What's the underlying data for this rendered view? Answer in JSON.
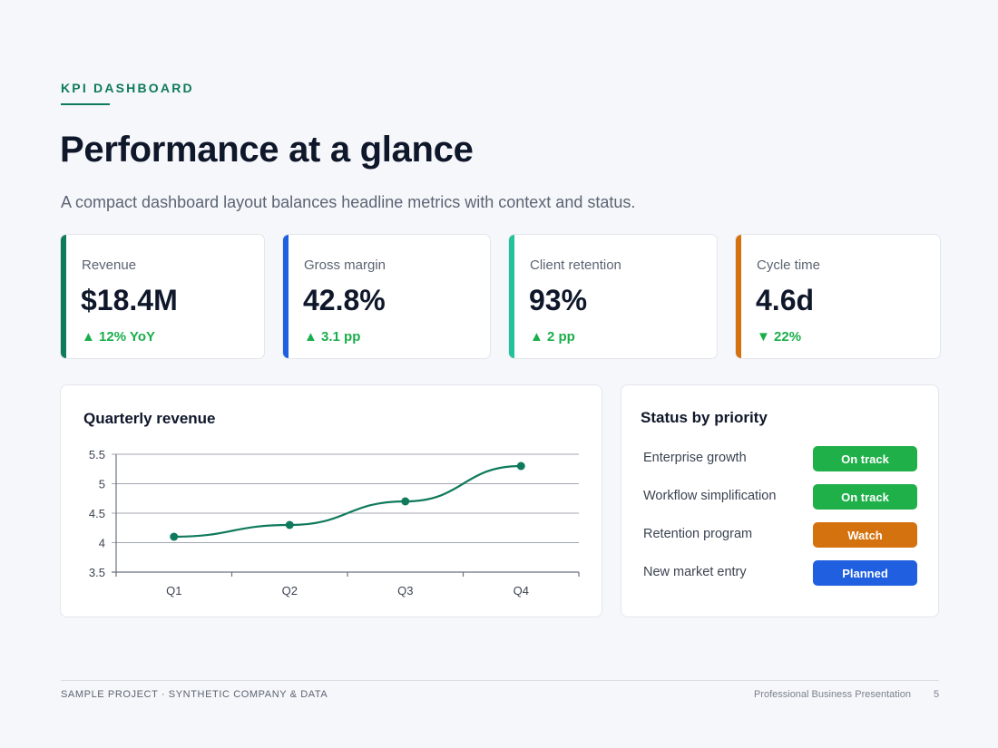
{
  "header": {
    "eyebrow": "KPI DASHBOARD",
    "title": "Performance at a glance",
    "subtitle": "A compact dashboard layout balances headline metrics with context and status."
  },
  "kpis": [
    {
      "label": "Revenue",
      "value": "$18.4M",
      "delta": "▲ 12% YoY",
      "accent": "#0f7a5c"
    },
    {
      "label": "Gross margin",
      "value": "42.8%",
      "delta": "▲ 3.1 pp",
      "accent": "#1f5fe0"
    },
    {
      "label": "Client retention",
      "value": "93%",
      "delta": "▲ 2 pp",
      "accent": "#22c29a"
    },
    {
      "label": "Cycle time",
      "value": "4.6d",
      "delta": "▼ 22%",
      "accent": "#d4720f"
    }
  ],
  "chart_data": {
    "type": "line",
    "title": "Quarterly revenue",
    "xlabel": "",
    "ylabel": "",
    "categories": [
      "Q1",
      "Q2",
      "Q3",
      "Q4"
    ],
    "series": [
      {
        "values": [
          4.1,
          4.3,
          4.7,
          5.3
        ],
        "color": "#0f7a5c"
      }
    ],
    "ylim": [
      3.5,
      5.5
    ],
    "yticks": [
      "3.5",
      "4",
      "4.5",
      "5",
      "5.5"
    ],
    "grid": true,
    "legend": "none"
  },
  "status": {
    "title": "Status by priority",
    "items": [
      {
        "label": "Enterprise growth",
        "status": "On track",
        "color": "#1fb04a"
      },
      {
        "label": "Workflow simplification",
        "status": "On track",
        "color": "#1fb04a"
      },
      {
        "label": "Retention program",
        "status": "Watch",
        "color": "#d4720f"
      },
      {
        "label": "New market entry",
        "status": "Planned",
        "color": "#1f5fe0"
      }
    ]
  },
  "footer": {
    "left": "SAMPLE PROJECT · SYNTHETIC COMPANY & DATA",
    "right": "Professional Business Presentation",
    "page": "5"
  }
}
